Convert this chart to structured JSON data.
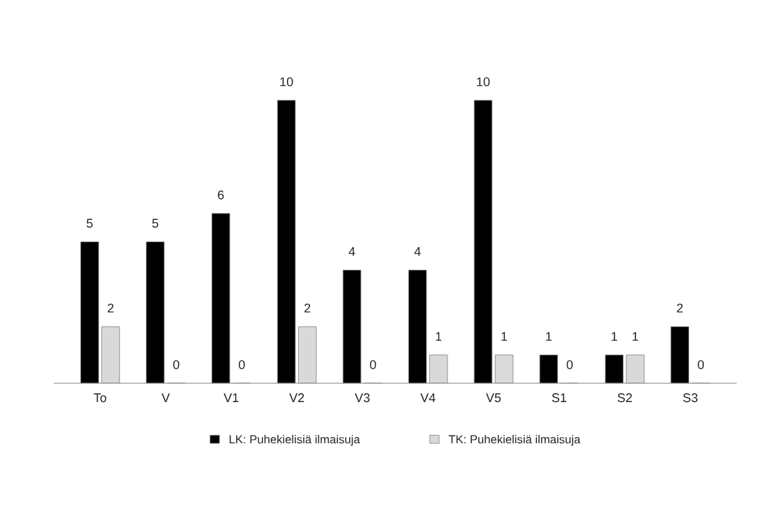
{
  "chart_data": {
    "type": "bar",
    "categories": [
      "To",
      "V",
      "V1",
      "V2",
      "V3",
      "V4",
      "V5",
      "S1",
      "S2",
      "S3"
    ],
    "series": [
      {
        "name": "LK: Puhekielisiä ilmaisuja",
        "color": "#000000",
        "values": [
          5,
          5,
          6,
          10,
          4,
          4,
          10,
          1,
          1,
          2
        ]
      },
      {
        "name": "TK: Puhekielisiä ilmaisuja",
        "color": "#d9d9d9",
        "values": [
          2,
          0,
          0,
          2,
          0,
          1,
          1,
          0,
          1,
          0
        ]
      }
    ],
    "data_labels": true,
    "legend": "bottom",
    "grid": false
  }
}
